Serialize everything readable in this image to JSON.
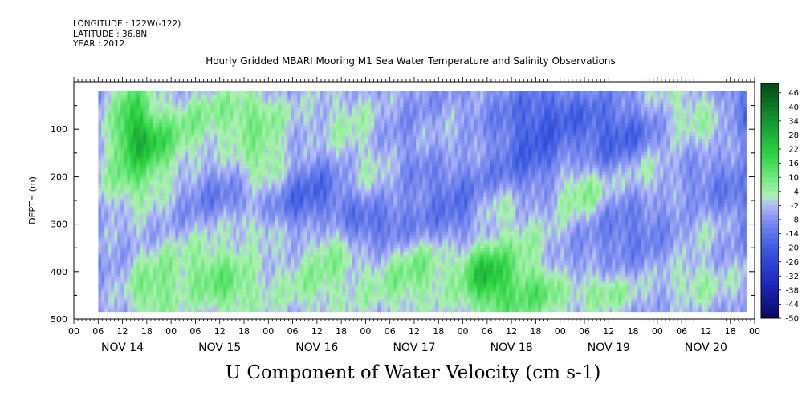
{
  "header": {
    "longitude": "LONGITUDE : 122W(-122)",
    "latitude": "LATITUDE : 36.8N",
    "year": "YEAR : 2012"
  },
  "chart_data": {
    "type": "heatmap",
    "title": "Hourly Gridded MBARI Mooring M1 Sea Water Temperature and Salinity Observations",
    "xlabel": "U Component of Water Velocity (cm s-1)",
    "ylabel": "DEPTH (m)",
    "y_ticks": [
      "100",
      "200",
      "300",
      "400",
      "500"
    ],
    "ylim": [
      0,
      500
    ],
    "y_reversed": true,
    "x_hour_labels": [
      "00",
      "06",
      "12",
      "18",
      "00",
      "06",
      "12",
      "18",
      "00",
      "06",
      "12",
      "18",
      "00",
      "06",
      "12",
      "18",
      "00",
      "06",
      "12",
      "18",
      "00",
      "06",
      "12",
      "18",
      "00",
      "06",
      "12",
      "18",
      "00"
    ],
    "x_day_labels": [
      "NOV 14",
      "NOV 15",
      "NOV 16",
      "NOV 17",
      "NOV 18",
      "NOV 19",
      "NOV 20"
    ],
    "colorbar_labels": [
      "46",
      "40",
      "34",
      "28",
      "22",
      "16",
      "10",
      "4",
      "-2",
      "-8",
      "-14",
      "-20",
      "-26",
      "-32",
      "-38",
      "-44",
      "-50"
    ],
    "color_range": [
      -50,
      50
    ],
    "colors": {
      "strong_negative": "#0a0a6e",
      "negative": "#3a5ae0",
      "weak_negative": "#a9b2f0",
      "weak_positive": "#9ef0a0",
      "positive": "#28d43a",
      "strong_positive": "#0b5a1c"
    },
    "data_extent_hours": [
      6,
      166
    ],
    "data_extent_depth": [
      20,
      485
    ]
  }
}
